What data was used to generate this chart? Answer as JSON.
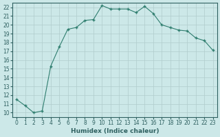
{
  "x": [
    0,
    1,
    2,
    3,
    4,
    5,
    6,
    7,
    8,
    9,
    10,
    11,
    12,
    13,
    14,
    15,
    16,
    17,
    18,
    19,
    20,
    21,
    22,
    23
  ],
  "y": [
    11.5,
    10.8,
    10.0,
    10.2,
    15.3,
    17.5,
    19.5,
    19.7,
    20.5,
    20.6,
    22.2,
    21.8,
    21.8,
    21.8,
    21.4,
    22.1,
    21.3,
    20.0,
    19.7,
    19.4,
    19.3,
    18.5,
    18.2,
    17.1
  ],
  "line_color": "#2e7d6e",
  "marker_color": "#2e7d6e",
  "bg_color": "#cce8e8",
  "grid_color": "#b0cccc",
  "xlabel": "Humidex (Indice chaleur)",
  "xlim": [
    -0.5,
    23.5
  ],
  "ylim": [
    9.5,
    22.5
  ],
  "yticks": [
    10,
    11,
    12,
    13,
    14,
    15,
    16,
    17,
    18,
    19,
    20,
    21,
    22
  ],
  "xticks": [
    0,
    1,
    2,
    3,
    4,
    5,
    6,
    7,
    8,
    9,
    10,
    11,
    12,
    13,
    14,
    15,
    16,
    17,
    18,
    19,
    20,
    21,
    22,
    23
  ],
  "tick_color": "#2e6060",
  "axis_color": "#2e6060",
  "label_fontsize": 6.5,
  "tick_fontsize": 5.5
}
